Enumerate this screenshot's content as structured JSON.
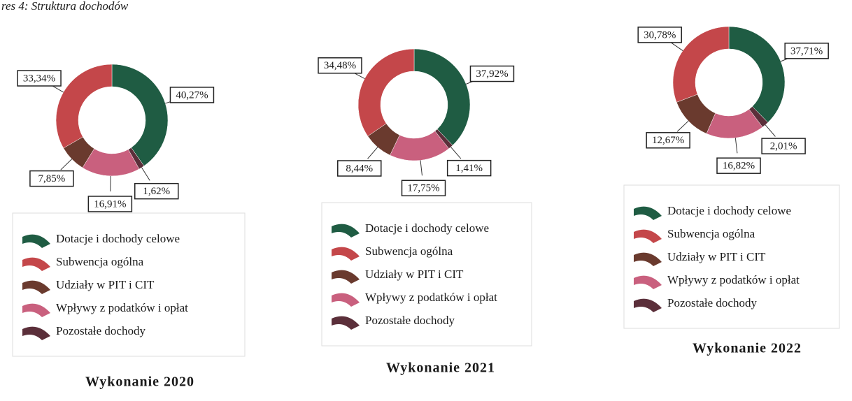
{
  "caption": "res 4: Struktura dochodów",
  "chart_data": [
    {
      "type": "donut",
      "title": "Wykonanie 2020",
      "categories": [
        "Dotacje i dochody celowe",
        "Subwencja ogólna",
        "Udziały w PIT i CIT",
        "Wpływy z podatków i opłat",
        "Pozostałe dochody"
      ],
      "series": [
        {
          "colors": [
            "#1f5c43",
            "#c4474a",
            "#6a3a2e",
            "#c9607e",
            "#5b2f3a"
          ],
          "values": [
            40.27,
            33.34,
            7.85,
            16.91,
            1.62
          ],
          "value_labels": [
            "40,27%",
            "33,34%",
            "7,85%",
            "16,91%",
            "1,62%"
          ]
        }
      ]
    },
    {
      "type": "donut",
      "title": "Wykonanie 2021",
      "categories": [
        "Dotacje i dochody celowe",
        "Subwencja ogólna",
        "Udziały w PIT i CIT",
        "Wpływy z podatków i opłat",
        "Pozostałe dochody"
      ],
      "series": [
        {
          "colors": [
            "#1f5c43",
            "#c4474a",
            "#6a3a2e",
            "#c9607e",
            "#5b2f3a"
          ],
          "values": [
            37.92,
            34.48,
            8.44,
            17.75,
            1.41
          ],
          "value_labels": [
            "37,92%",
            "34,48%",
            "8,44%",
            "17,75%",
            "1,41%"
          ]
        }
      ]
    },
    {
      "type": "donut",
      "title": "Wykonanie 2022",
      "categories": [
        "Dotacje i dochody celowe",
        "Subwencja ogólna",
        "Udziały w PIT i CIT",
        "Wpływy z podatków i opłat",
        "Pozostałe dochody"
      ],
      "series": [
        {
          "colors": [
            "#1f5c43",
            "#c4474a",
            "#6a3a2e",
            "#c9607e",
            "#5b2f3a"
          ],
          "values": [
            37.71,
            30.78,
            12.67,
            16.82,
            2.01
          ],
          "value_labels": [
            "37,71%",
            "30,78%",
            "12,67%",
            "16,82%",
            "2,01%"
          ]
        }
      ]
    }
  ]
}
